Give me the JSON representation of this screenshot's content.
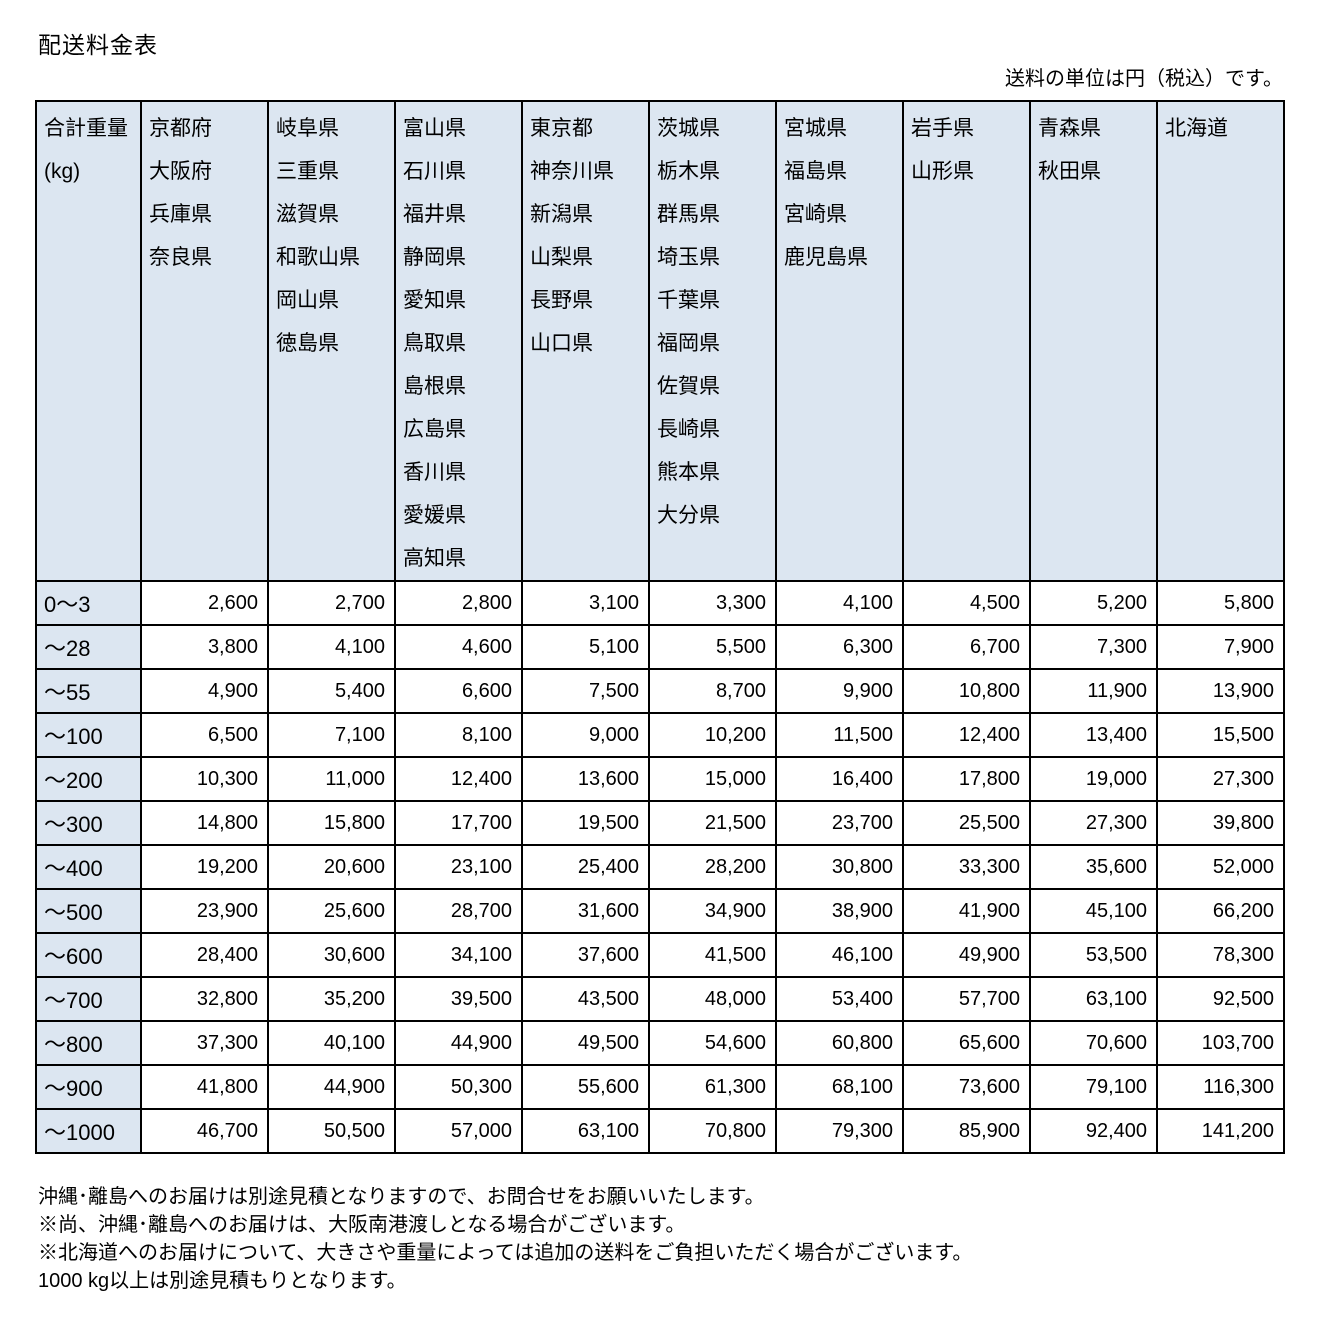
{
  "page": {
    "title": "配送料金表",
    "unit_note": "送料の単位は円（税込）です。"
  },
  "colors": {
    "header_bg": "#dce6f1",
    "border": "#000000",
    "text": "#000000"
  },
  "table": {
    "weight_header": {
      "line1": "合計重量",
      "line2": "(kg)"
    },
    "columns": [
      [
        "京都府",
        "大阪府",
        "兵庫県",
        "奈良県"
      ],
      [
        "岐阜県",
        "三重県",
        "滋賀県",
        "和歌山県",
        "岡山県",
        "徳島県"
      ],
      [
        "富山県",
        "石川県",
        "福井県",
        "静岡県",
        "愛知県",
        "鳥取県",
        "島根県",
        "広島県",
        "香川県",
        "愛媛県",
        "高知県"
      ],
      [
        "東京都",
        "神奈川県",
        "新潟県",
        "山梨県",
        "長野県",
        "山口県"
      ],
      [
        "茨城県",
        "栃木県",
        "群馬県",
        "埼玉県",
        "千葉県",
        "福岡県",
        "佐賀県",
        "長崎県",
        "熊本県",
        "大分県"
      ],
      [
        "宮城県",
        "福島県",
        "宮崎県",
        "鹿児島県"
      ],
      [
        "岩手県",
        "山形県"
      ],
      [
        "青森県",
        "秋田県"
      ],
      [
        "北海道"
      ]
    ],
    "rows": [
      {
        "weight": "0～3",
        "values": [
          "2,600",
          "2,700",
          "2,800",
          "3,100",
          "3,300",
          "4,100",
          "4,500",
          "5,200",
          "5,800"
        ]
      },
      {
        "weight": "～28",
        "values": [
          "3,800",
          "4,100",
          "4,600",
          "5,100",
          "5,500",
          "6,300",
          "6,700",
          "7,300",
          "7,900"
        ]
      },
      {
        "weight": "～55",
        "values": [
          "4,900",
          "5,400",
          "6,600",
          "7,500",
          "8,700",
          "9,900",
          "10,800",
          "11,900",
          "13,900"
        ]
      },
      {
        "weight": "～100",
        "values": [
          "6,500",
          "7,100",
          "8,100",
          "9,000",
          "10,200",
          "11,500",
          "12,400",
          "13,400",
          "15,500"
        ]
      },
      {
        "weight": "～200",
        "values": [
          "10,300",
          "11,000",
          "12,400",
          "13,600",
          "15,000",
          "16,400",
          "17,800",
          "19,000",
          "27,300"
        ]
      },
      {
        "weight": "～300",
        "values": [
          "14,800",
          "15,800",
          "17,700",
          "19,500",
          "21,500",
          "23,700",
          "25,500",
          "27,300",
          "39,800"
        ]
      },
      {
        "weight": "～400",
        "values": [
          "19,200",
          "20,600",
          "23,100",
          "25,400",
          "28,200",
          "30,800",
          "33,300",
          "35,600",
          "52,000"
        ]
      },
      {
        "weight": "～500",
        "values": [
          "23,900",
          "25,600",
          "28,700",
          "31,600",
          "34,900",
          "38,900",
          "41,900",
          "45,100",
          "66,200"
        ]
      },
      {
        "weight": "～600",
        "values": [
          "28,400",
          "30,600",
          "34,100",
          "37,600",
          "41,500",
          "46,100",
          "49,900",
          "53,500",
          "78,300"
        ]
      },
      {
        "weight": "～700",
        "values": [
          "32,800",
          "35,200",
          "39,500",
          "43,500",
          "48,000",
          "53,400",
          "57,700",
          "63,100",
          "92,500"
        ]
      },
      {
        "weight": "～800",
        "values": [
          "37,300",
          "40,100",
          "44,900",
          "49,500",
          "54,600",
          "60,800",
          "65,600",
          "70,600",
          "103,700"
        ]
      },
      {
        "weight": "～900",
        "values": [
          "41,800",
          "44,900",
          "50,300",
          "55,600",
          "61,300",
          "68,100",
          "73,600",
          "79,100",
          "116,300"
        ]
      },
      {
        "weight": "～1000",
        "values": [
          "46,700",
          "50,500",
          "57,000",
          "63,100",
          "70,800",
          "79,300",
          "85,900",
          "92,400",
          "141,200"
        ]
      }
    ]
  },
  "notes": [
    "沖縄･離島へのお届けは別途見積となりますので、お問合せをお願いいたします。",
    "※尚、沖縄･離島へのお届けは、大阪南港渡しとなる場合がございます。",
    "※北海道へのお届けについて、大きさや重量によっては追加の送料をご負担いただく場合がございます。",
    "1000 kg以上は別途見積もりとなります。"
  ]
}
